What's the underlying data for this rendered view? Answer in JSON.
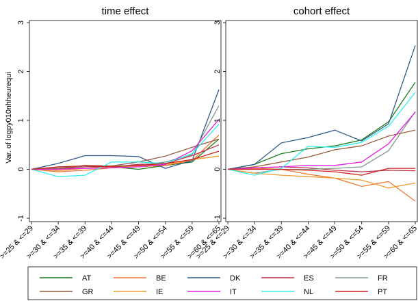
{
  "chart_data": [
    {
      "type": "line",
      "title": "time effect",
      "ylabel": "Var. of logpy010nhheurequi",
      "xlabel": "",
      "categories": [
        ">=25 & <=29",
        ">=30 & <=34",
        ">=35 & <=39",
        ">=40 & <=44",
        ">=45 & <=49",
        ">=50 & <=54",
        ">=55 & <=59",
        ">=60 & <=65"
      ],
      "ylim": [
        -1,
        3
      ],
      "yticks": [
        -1,
        0,
        1,
        2,
        3
      ],
      "series": [
        {
          "name": "AT",
          "values": [
            0,
            0.02,
            0.06,
            0.05,
            0.0,
            0.08,
            0.15,
            0.62
          ]
        },
        {
          "name": "BE",
          "values": [
            0,
            -0.05,
            -0.02,
            0.03,
            0.05,
            0.08,
            0.18,
            0.7
          ]
        },
        {
          "name": "DK",
          "values": [
            0,
            0.12,
            0.28,
            0.28,
            0.26,
            0.02,
            0.18,
            1.63
          ]
        },
        {
          "name": "ES",
          "values": [
            0,
            0.0,
            0.05,
            0.05,
            0.1,
            0.12,
            0.28,
            0.5
          ]
        },
        {
          "name": "FR",
          "values": [
            0,
            0.03,
            0.06,
            0.07,
            0.08,
            0.15,
            0.3,
            1.3
          ]
        },
        {
          "name": "GR",
          "values": [
            0,
            0.02,
            0.08,
            0.07,
            0.15,
            0.27,
            0.45,
            0.62
          ]
        },
        {
          "name": "IE",
          "values": [
            0,
            -0.03,
            0.02,
            0.05,
            0.07,
            0.1,
            0.2,
            0.27
          ]
        },
        {
          "name": "IT",
          "values": [
            0,
            0.0,
            0.02,
            0.03,
            0.05,
            0.1,
            0.38,
            1.02
          ]
        },
        {
          "name": "NL",
          "values": [
            0,
            -0.15,
            -0.12,
            0.15,
            0.15,
            0.12,
            0.32,
            0.92
          ]
        },
        {
          "name": "PT",
          "values": [
            0,
            0.05,
            0.07,
            0.05,
            0.08,
            0.12,
            0.2,
            0.37
          ]
        }
      ]
    },
    {
      "type": "line",
      "title": "cohort effect",
      "ylabel": "",
      "xlabel": "",
      "categories": [
        ">=25 & <=29",
        ">=30 & <=34",
        ">=35 & <=39",
        ">=40 & <=44",
        ">=45 & <=49",
        ">=50 & <=54",
        ">=55 & <=59",
        ">=60 & <=65"
      ],
      "ylim": [
        -1,
        3
      ],
      "yticks": [
        -1,
        0,
        1,
        2,
        3
      ],
      "series": [
        {
          "name": "AT",
          "values": [
            0,
            0.1,
            0.32,
            0.42,
            0.48,
            0.6,
            0.97,
            1.78
          ]
        },
        {
          "name": "BE",
          "values": [
            0,
            0.02,
            0.0,
            -0.1,
            -0.18,
            -0.35,
            -0.25,
            -0.65
          ]
        },
        {
          "name": "DK",
          "values": [
            0,
            0.1,
            0.54,
            0.65,
            0.8,
            0.58,
            0.93,
            2.53
          ]
        },
        {
          "name": "ES",
          "values": [
            0,
            0.03,
            0.05,
            0.03,
            -0.02,
            -0.05,
            -0.02,
            -0.03
          ]
        },
        {
          "name": "FR",
          "values": [
            0,
            -0.08,
            0.0,
            0.0,
            0.02,
            0.05,
            0.38,
            1.18
          ]
        },
        {
          "name": "GR",
          "values": [
            0,
            0.05,
            0.15,
            0.25,
            0.4,
            0.48,
            0.68,
            0.8
          ]
        },
        {
          "name": "IE",
          "values": [
            0,
            -0.08,
            -0.12,
            -0.15,
            -0.18,
            -0.22,
            -0.38,
            -0.28
          ]
        },
        {
          "name": "IT",
          "values": [
            0,
            0.03,
            0.05,
            0.08,
            0.08,
            0.15,
            0.52,
            1.17
          ]
        },
        {
          "name": "NL",
          "values": [
            0,
            -0.12,
            0.02,
            0.47,
            0.45,
            0.55,
            0.88,
            1.57
          ]
        },
        {
          "name": "PT",
          "values": [
            0,
            0.0,
            0.0,
            -0.02,
            -0.05,
            -0.12,
            0.02,
            0.02
          ]
        }
      ]
    }
  ],
  "legend": {
    "placement": "bottom",
    "items": [
      {
        "name": "AT",
        "color": "#1a7a1a"
      },
      {
        "name": "BE",
        "color": "#f07830"
      },
      {
        "name": "DK",
        "color": "#2d5a8a"
      },
      {
        "name": "ES",
        "color": "#c0304a"
      },
      {
        "name": "FR",
        "color": "#7a9a8a"
      },
      {
        "name": "GR",
        "color": "#9a5a40"
      },
      {
        "name": "IE",
        "color": "#f09a30"
      },
      {
        "name": "IT",
        "color": "#e020e0"
      },
      {
        "name": "NL",
        "color": "#30f0f0"
      },
      {
        "name": "PT",
        "color": "#d02020"
      }
    ]
  }
}
